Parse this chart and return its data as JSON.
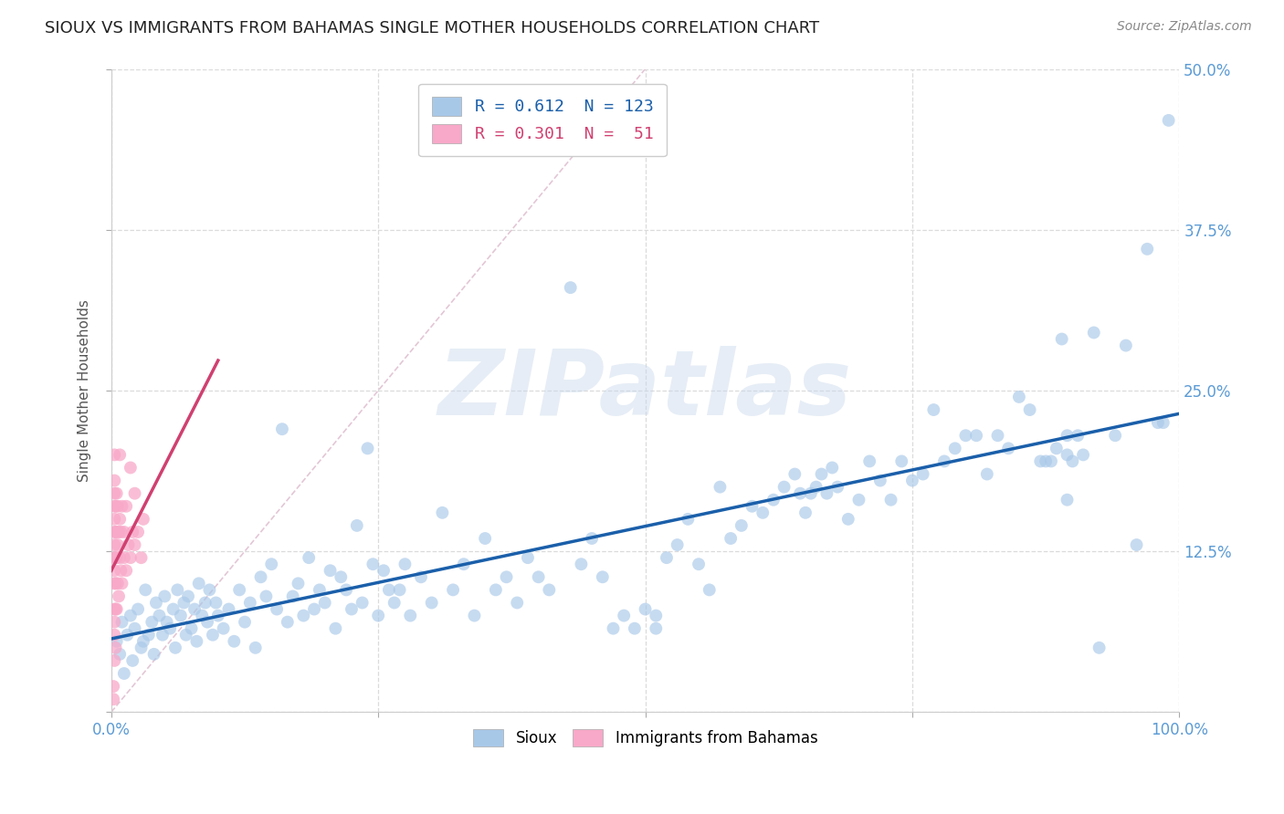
{
  "title": "SIOUX VS IMMIGRANTS FROM BAHAMAS SINGLE MOTHER HOUSEHOLDS CORRELATION CHART",
  "source": "Source: ZipAtlas.com",
  "ylabel": "Single Mother Households",
  "xlim": [
    0,
    1.0
  ],
  "ylim": [
    0,
    0.5
  ],
  "xticks": [
    0.0,
    0.25,
    0.5,
    0.75,
    1.0
  ],
  "xtick_labels": [
    "0.0%",
    "",
    "",
    "",
    "100.0%"
  ],
  "yticks": [
    0.0,
    0.125,
    0.25,
    0.375,
    0.5
  ],
  "ytick_labels_right": [
    "",
    "12.5%",
    "25.0%",
    "37.5%",
    "50.0%"
  ],
  "sioux_color": "#a8c8e8",
  "bahamas_color": "#f8a8c8",
  "trendline_sioux_color": "#1a5faa",
  "trendline_bahamas_color": "#d04070",
  "diagonal_color": "#e0c0d0",
  "watermark": "ZIPatlas",
  "background_color": "#ffffff",
  "grid_color": "#d8d8d8",
  "title_fontsize": 13,
  "axis_label_fontsize": 11,
  "tick_fontsize": 12,
  "tick_color": "#5b9bd5",
  "sioux_points": [
    [
      0.005,
      0.055
    ],
    [
      0.008,
      0.045
    ],
    [
      0.01,
      0.07
    ],
    [
      0.012,
      0.03
    ],
    [
      0.015,
      0.06
    ],
    [
      0.018,
      0.075
    ],
    [
      0.02,
      0.04
    ],
    [
      0.022,
      0.065
    ],
    [
      0.025,
      0.08
    ],
    [
      0.028,
      0.05
    ],
    [
      0.03,
      0.055
    ],
    [
      0.032,
      0.095
    ],
    [
      0.035,
      0.06
    ],
    [
      0.038,
      0.07
    ],
    [
      0.04,
      0.045
    ],
    [
      0.042,
      0.085
    ],
    [
      0.045,
      0.075
    ],
    [
      0.048,
      0.06
    ],
    [
      0.05,
      0.09
    ],
    [
      0.052,
      0.07
    ],
    [
      0.055,
      0.065
    ],
    [
      0.058,
      0.08
    ],
    [
      0.06,
      0.05
    ],
    [
      0.062,
      0.095
    ],
    [
      0.065,
      0.075
    ],
    [
      0.068,
      0.085
    ],
    [
      0.07,
      0.06
    ],
    [
      0.072,
      0.09
    ],
    [
      0.075,
      0.065
    ],
    [
      0.078,
      0.08
    ],
    [
      0.08,
      0.055
    ],
    [
      0.082,
      0.1
    ],
    [
      0.085,
      0.075
    ],
    [
      0.088,
      0.085
    ],
    [
      0.09,
      0.07
    ],
    [
      0.092,
      0.095
    ],
    [
      0.095,
      0.06
    ],
    [
      0.098,
      0.085
    ],
    [
      0.1,
      0.075
    ],
    [
      0.105,
      0.065
    ],
    [
      0.11,
      0.08
    ],
    [
      0.115,
      0.055
    ],
    [
      0.12,
      0.095
    ],
    [
      0.125,
      0.07
    ],
    [
      0.13,
      0.085
    ],
    [
      0.135,
      0.05
    ],
    [
      0.14,
      0.105
    ],
    [
      0.145,
      0.09
    ],
    [
      0.15,
      0.115
    ],
    [
      0.155,
      0.08
    ],
    [
      0.16,
      0.22
    ],
    [
      0.165,
      0.07
    ],
    [
      0.17,
      0.09
    ],
    [
      0.175,
      0.1
    ],
    [
      0.18,
      0.075
    ],
    [
      0.185,
      0.12
    ],
    [
      0.19,
      0.08
    ],
    [
      0.195,
      0.095
    ],
    [
      0.2,
      0.085
    ],
    [
      0.205,
      0.11
    ],
    [
      0.21,
      0.065
    ],
    [
      0.215,
      0.105
    ],
    [
      0.22,
      0.095
    ],
    [
      0.225,
      0.08
    ],
    [
      0.23,
      0.145
    ],
    [
      0.235,
      0.085
    ],
    [
      0.24,
      0.205
    ],
    [
      0.245,
      0.115
    ],
    [
      0.25,
      0.075
    ],
    [
      0.255,
      0.11
    ],
    [
      0.26,
      0.095
    ],
    [
      0.265,
      0.085
    ],
    [
      0.27,
      0.095
    ],
    [
      0.275,
      0.115
    ],
    [
      0.28,
      0.075
    ],
    [
      0.29,
      0.105
    ],
    [
      0.3,
      0.085
    ],
    [
      0.31,
      0.155
    ],
    [
      0.32,
      0.095
    ],
    [
      0.33,
      0.115
    ],
    [
      0.34,
      0.075
    ],
    [
      0.35,
      0.135
    ],
    [
      0.36,
      0.095
    ],
    [
      0.37,
      0.105
    ],
    [
      0.38,
      0.085
    ],
    [
      0.39,
      0.12
    ],
    [
      0.4,
      0.105
    ],
    [
      0.41,
      0.095
    ],
    [
      0.43,
      0.33
    ],
    [
      0.44,
      0.115
    ],
    [
      0.45,
      0.135
    ],
    [
      0.46,
      0.105
    ],
    [
      0.47,
      0.065
    ],
    [
      0.48,
      0.075
    ],
    [
      0.49,
      0.065
    ],
    [
      0.5,
      0.08
    ],
    [
      0.51,
      0.065
    ],
    [
      0.51,
      0.075
    ],
    [
      0.52,
      0.12
    ],
    [
      0.53,
      0.13
    ],
    [
      0.54,
      0.15
    ],
    [
      0.55,
      0.115
    ],
    [
      0.56,
      0.095
    ],
    [
      0.57,
      0.175
    ],
    [
      0.58,
      0.135
    ],
    [
      0.59,
      0.145
    ],
    [
      0.6,
      0.16
    ],
    [
      0.61,
      0.155
    ],
    [
      0.62,
      0.165
    ],
    [
      0.63,
      0.175
    ],
    [
      0.64,
      0.185
    ],
    [
      0.645,
      0.17
    ],
    [
      0.65,
      0.155
    ],
    [
      0.655,
      0.17
    ],
    [
      0.66,
      0.175
    ],
    [
      0.665,
      0.185
    ],
    [
      0.67,
      0.17
    ],
    [
      0.675,
      0.19
    ],
    [
      0.68,
      0.175
    ],
    [
      0.69,
      0.15
    ],
    [
      0.7,
      0.165
    ],
    [
      0.71,
      0.195
    ],
    [
      0.72,
      0.18
    ],
    [
      0.73,
      0.165
    ],
    [
      0.74,
      0.195
    ],
    [
      0.75,
      0.18
    ],
    [
      0.76,
      0.185
    ],
    [
      0.77,
      0.235
    ],
    [
      0.78,
      0.195
    ],
    [
      0.79,
      0.205
    ],
    [
      0.8,
      0.215
    ],
    [
      0.81,
      0.215
    ],
    [
      0.82,
      0.185
    ],
    [
      0.83,
      0.215
    ],
    [
      0.84,
      0.205
    ],
    [
      0.85,
      0.245
    ],
    [
      0.86,
      0.235
    ],
    [
      0.87,
      0.195
    ],
    [
      0.875,
      0.195
    ],
    [
      0.88,
      0.195
    ],
    [
      0.885,
      0.205
    ],
    [
      0.89,
      0.29
    ],
    [
      0.895,
      0.165
    ],
    [
      0.895,
      0.2
    ],
    [
      0.895,
      0.215
    ],
    [
      0.9,
      0.195
    ],
    [
      0.905,
      0.215
    ],
    [
      0.91,
      0.2
    ],
    [
      0.92,
      0.295
    ],
    [
      0.925,
      0.05
    ],
    [
      0.94,
      0.215
    ],
    [
      0.95,
      0.285
    ],
    [
      0.96,
      0.13
    ],
    [
      0.97,
      0.36
    ],
    [
      0.98,
      0.225
    ],
    [
      0.985,
      0.225
    ],
    [
      0.99,
      0.46
    ]
  ],
  "bahamas_points": [
    [
      0.002,
      0.01
    ],
    [
      0.003,
      0.04
    ],
    [
      0.003,
      0.07
    ],
    [
      0.003,
      0.08
    ],
    [
      0.003,
      0.1
    ],
    [
      0.003,
      0.11
    ],
    [
      0.003,
      0.12
    ],
    [
      0.003,
      0.13
    ],
    [
      0.003,
      0.14
    ],
    [
      0.003,
      0.15
    ],
    [
      0.003,
      0.16
    ],
    [
      0.003,
      0.17
    ],
    [
      0.003,
      0.18
    ],
    [
      0.003,
      0.06
    ],
    [
      0.003,
      0.2
    ],
    [
      0.004,
      0.05
    ],
    [
      0.004,
      0.08
    ],
    [
      0.004,
      0.1
    ],
    [
      0.004,
      0.12
    ],
    [
      0.004,
      0.14
    ],
    [
      0.004,
      0.16
    ],
    [
      0.005,
      0.08
    ],
    [
      0.005,
      0.12
    ],
    [
      0.005,
      0.14
    ],
    [
      0.005,
      0.17
    ],
    [
      0.006,
      0.1
    ],
    [
      0.006,
      0.13
    ],
    [
      0.006,
      0.16
    ],
    [
      0.007,
      0.09
    ],
    [
      0.007,
      0.14
    ],
    [
      0.008,
      0.12
    ],
    [
      0.008,
      0.15
    ],
    [
      0.008,
      0.2
    ],
    [
      0.009,
      0.11
    ],
    [
      0.009,
      0.14
    ],
    [
      0.01,
      0.1
    ],
    [
      0.01,
      0.16
    ],
    [
      0.012,
      0.12
    ],
    [
      0.012,
      0.14
    ],
    [
      0.014,
      0.11
    ],
    [
      0.014,
      0.16
    ],
    [
      0.016,
      0.13
    ],
    [
      0.018,
      0.12
    ],
    [
      0.018,
      0.19
    ],
    [
      0.02,
      0.14
    ],
    [
      0.022,
      0.13
    ],
    [
      0.022,
      0.17
    ],
    [
      0.025,
      0.14
    ],
    [
      0.028,
      0.12
    ],
    [
      0.03,
      0.15
    ],
    [
      0.002,
      0.02
    ]
  ]
}
